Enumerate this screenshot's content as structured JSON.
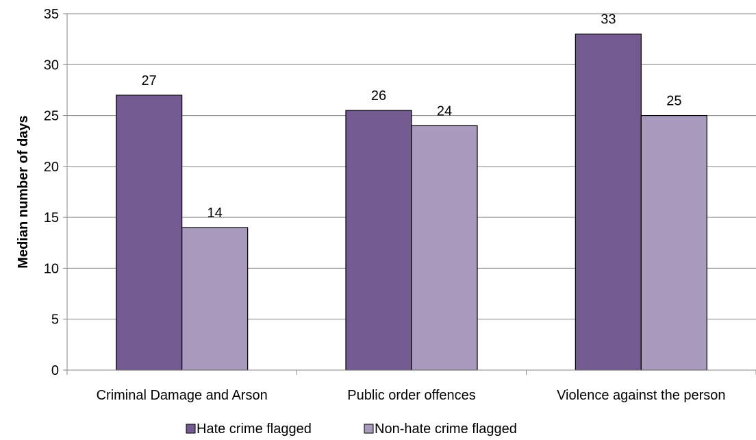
{
  "chart_data": {
    "type": "bar",
    "categories": [
      "Criminal Damage and Arson",
      "Public order offences",
      "Violence against the person"
    ],
    "series": [
      {
        "name": "Hate crime flagged",
        "values": [
          27,
          25.5,
          33
        ],
        "labels": [
          "27",
          "26",
          "33"
        ],
        "color": "#735A91"
      },
      {
        "name": "Non-hate crime flagged",
        "values": [
          14,
          24,
          25
        ],
        "labels": [
          "14",
          "24",
          "25"
        ],
        "color": "#A99BBE"
      }
    ],
    "ylabel": "Median number of days",
    "xlabel": "",
    "ylim": [
      0,
      35
    ],
    "yticks": [
      "0",
      "5",
      "10",
      "15",
      "20",
      "25",
      "30",
      "35"
    ],
    "grid": true,
    "legend_position": "bottom"
  }
}
